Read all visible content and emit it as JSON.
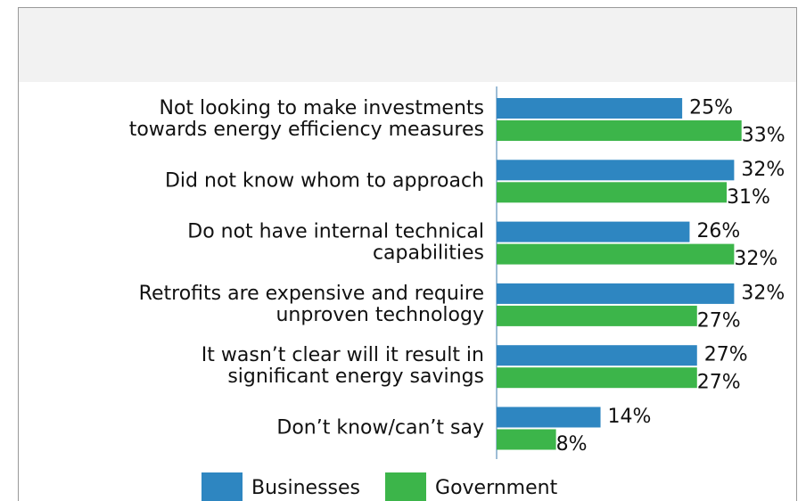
{
  "chart_data": {
    "type": "hbar",
    "categories": [
      [
        "Not looking to make investments",
        "towards energy efficiency measures"
      ],
      [
        "Did not know whom to approach"
      ],
      [
        "Do not have internal technical",
        "capabilities"
      ],
      [
        "Retrofits are expensive and require",
        "unproven technology"
      ],
      [
        "It wasn’t clear will it result in",
        "significant energy savings"
      ],
      [
        "Don’t know/can’t say"
      ]
    ],
    "series": [
      {
        "name": "Businesses",
        "color": "#2e86c1",
        "values": [
          25,
          32,
          26,
          32,
          27,
          14
        ],
        "value_labels": [
          "25%",
          "32%",
          "26%",
          "32%",
          "27%",
          "14%"
        ]
      },
      {
        "name": "Government",
        "color": "#3cb54a",
        "values": [
          33,
          31,
          32,
          27,
          27,
          8
        ],
        "value_labels": [
          "33%",
          "31%",
          "32%",
          "27%",
          "27%",
          "8%"
        ]
      }
    ],
    "xlim": [
      0,
      40
    ],
    "legend": "bottom"
  }
}
